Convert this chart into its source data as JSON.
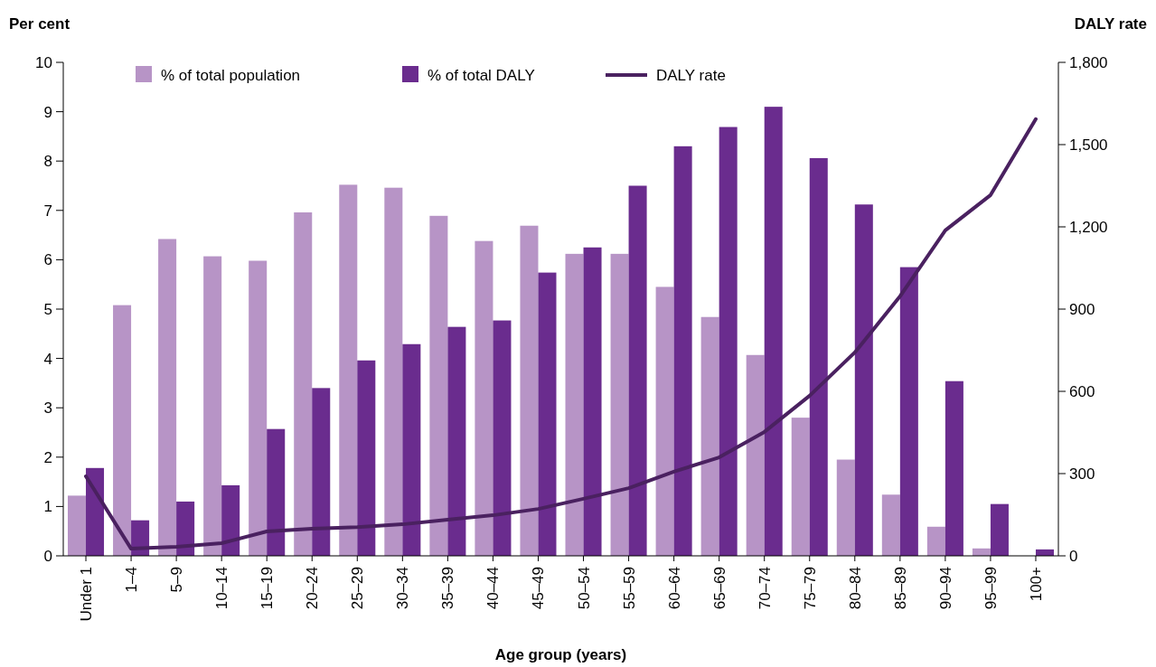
{
  "chart_data": {
    "type": "bar",
    "xlabel": "Age group (years)",
    "ylabel": "Per cent",
    "y2label": "DALY rate",
    "categories": [
      "Under 1",
      "1–4",
      "5–9",
      "10–14",
      "15–19",
      "20–24",
      "25–29",
      "30–34",
      "35–39",
      "40–44",
      "45–49",
      "50–54",
      "55–59",
      "60–64",
      "65–69",
      "70–74",
      "75–79",
      "80–84",
      "85–89",
      "90–94",
      "95–99",
      "100+"
    ],
    "series": [
      {
        "name": "% of total population",
        "color": "#b794c6",
        "values": [
          1.22,
          5.08,
          6.42,
          6.07,
          5.98,
          6.96,
          7.52,
          7.46,
          6.89,
          6.38,
          6.69,
          6.12,
          6.12,
          5.45,
          4.84,
          4.07,
          2.8,
          1.95,
          1.24,
          0.59,
          0.15,
          null
        ]
      },
      {
        "name": "% of total DALY",
        "color": "#6a2c8e",
        "values": [
          1.78,
          0.72,
          1.1,
          1.43,
          2.57,
          3.4,
          3.96,
          4.29,
          4.64,
          4.77,
          5.74,
          6.25,
          7.5,
          8.3,
          8.69,
          9.1,
          8.06,
          7.12,
          5.85,
          3.54,
          1.05,
          0.13
        ]
      },
      {
        "name": "DALY rate",
        "type": "line",
        "axis": "y2",
        "color": "#4a2160",
        "values": [
          290,
          26,
          33,
          46,
          89,
          99,
          105,
          115,
          132,
          148,
          171,
          208,
          247,
          307,
          359,
          452,
          584,
          742,
          947,
          1187,
          1316,
          1593
        ]
      }
    ],
    "ylim": [
      0,
      10
    ],
    "yticks": [
      0,
      1,
      2,
      3,
      4,
      5,
      6,
      7,
      8,
      9,
      10
    ],
    "y2lim": [
      0,
      1800
    ],
    "y2ticks": [
      0,
      300,
      600,
      900,
      {
        "value": 1200,
        "label": "1,200"
      },
      {
        "value": 1500,
        "label": "1,500"
      },
      {
        "value": 1800,
        "label": "1,800"
      }
    ],
    "grid": false,
    "legend": "top",
    "marker": "none",
    "line_style": "solid"
  }
}
